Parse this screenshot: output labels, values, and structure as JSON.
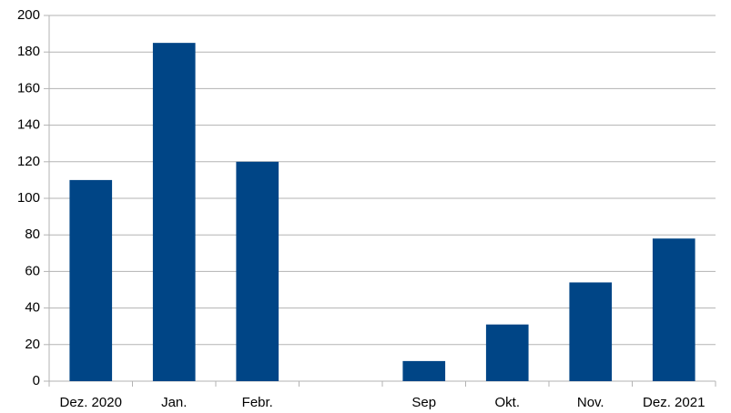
{
  "chart_data": {
    "type": "bar",
    "categories": [
      "Dez. 2020",
      "Jan.",
      "Febr.",
      null,
      "Sep",
      "Okt.",
      "Nov.",
      "Dez. 2021"
    ],
    "values": [
      110,
      185,
      120,
      null,
      11,
      31,
      54,
      78
    ],
    "color": "#004586",
    "ylim": [
      0,
      200
    ],
    "yticks": [
      0,
      20,
      40,
      60,
      80,
      100,
      120,
      140,
      160,
      180,
      200
    ],
    "grid": true
  }
}
